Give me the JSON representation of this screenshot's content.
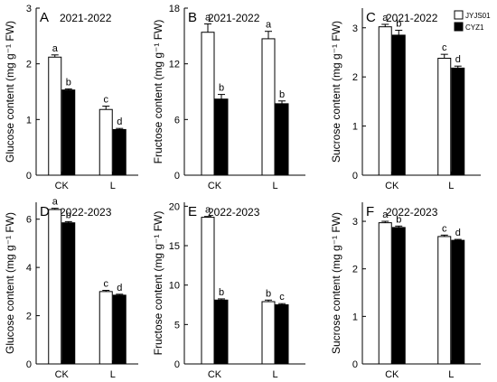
{
  "legend": {
    "items": [
      {
        "name": "JYJS01",
        "fill": "#ffffff"
      },
      {
        "name": "CYZ1",
        "fill": "#000000"
      }
    ]
  },
  "chart_data": [
    {
      "type": "bar",
      "panel_letter": "A",
      "period": "2021-2022",
      "ylabel": "Glucose content (mg g⁻¹ FW)",
      "ylim": [
        0,
        3
      ],
      "yticks": [
        0,
        1,
        2,
        3
      ],
      "categories": [
        "CK",
        "L"
      ],
      "series": [
        {
          "name": "JYJS01",
          "values": [
            2.12,
            1.18
          ],
          "errors": [
            0.04,
            0.06
          ],
          "letters": [
            "a",
            "c"
          ]
        },
        {
          "name": "CYZ1",
          "values": [
            1.53,
            0.82
          ],
          "errors": [
            0.02,
            0.02
          ],
          "letters": [
            "b",
            "d"
          ]
        }
      ]
    },
    {
      "type": "bar",
      "panel_letter": "B",
      "period": "2021-2022",
      "ylabel": "Fructose content (mg g⁻¹ FW)",
      "ylim": [
        0,
        18
      ],
      "yticks": [
        0,
        6,
        12,
        18
      ],
      "categories": [
        "CK",
        "L"
      ],
      "series": [
        {
          "name": "JYJS01",
          "values": [
            15.4,
            14.7
          ],
          "errors": [
            0.9,
            0.8
          ],
          "letters": [
            "a",
            "a"
          ]
        },
        {
          "name": "CYZ1",
          "values": [
            8.2,
            7.7
          ],
          "errors": [
            0.5,
            0.3
          ],
          "letters": [
            "b",
            "b"
          ]
        }
      ]
    },
    {
      "type": "bar",
      "panel_letter": "C",
      "period": "2021-2022",
      "ylabel": "Sucrose content (mg g⁻¹ FW)",
      "ylim": [
        0,
        3.4
      ],
      "yticks": [
        0,
        1,
        2,
        3
      ],
      "categories": [
        "CK",
        "L"
      ],
      "series": [
        {
          "name": "JYJS01",
          "values": [
            3.02,
            2.38
          ],
          "errors": [
            0.05,
            0.08
          ],
          "letters": [
            "a",
            "c"
          ]
        },
        {
          "name": "CYZ1",
          "values": [
            2.85,
            2.18
          ],
          "errors": [
            0.1,
            0.04
          ],
          "letters": [
            "b",
            "d"
          ]
        }
      ]
    },
    {
      "type": "bar",
      "panel_letter": "D",
      "period": "2022-2023",
      "ylabel": "Glucose content (mg g⁻¹ FW)",
      "ylim": [
        0,
        6.7
      ],
      "yticks": [
        0,
        2,
        4,
        6
      ],
      "categories": [
        "CK",
        "L"
      ],
      "series": [
        {
          "name": "JYJS01",
          "values": [
            6.4,
            3.0
          ],
          "errors": [
            0.05,
            0.05
          ],
          "letters": [
            "a",
            "c"
          ]
        },
        {
          "name": "CYZ1",
          "values": [
            5.85,
            2.85
          ],
          "errors": [
            0.05,
            0.04
          ],
          "letters": [
            "b",
            "d"
          ]
        }
      ]
    },
    {
      "type": "bar",
      "panel_letter": "E",
      "period": "2022-2023",
      "ylabel": "Fructose content (mg g⁻¹ FW)",
      "ylim": [
        0,
        20.5
      ],
      "yticks": [
        0,
        5,
        10,
        15,
        20
      ],
      "categories": [
        "CK",
        "L"
      ],
      "series": [
        {
          "name": "JYJS01",
          "values": [
            18.6,
            7.9
          ],
          "errors": [
            0.1,
            0.2
          ],
          "letters": [
            "a",
            "b"
          ]
        },
        {
          "name": "CYZ1",
          "values": [
            8.1,
            7.5
          ],
          "errors": [
            0.15,
            0.15
          ],
          "letters": [
            "b",
            "c"
          ]
        }
      ]
    },
    {
      "type": "bar",
      "panel_letter": "F",
      "period": "2022-2023",
      "ylabel": "Sucrose content (mg g⁻¹ FW)",
      "ylim": [
        0,
        3.4
      ],
      "yticks": [
        0,
        1,
        2,
        3
      ],
      "categories": [
        "CK",
        "L"
      ],
      "series": [
        {
          "name": "JYJS01",
          "values": [
            2.97,
            2.68
          ],
          "errors": [
            0.03,
            0.03
          ],
          "letters": [
            "a",
            "c"
          ]
        },
        {
          "name": "CYZ1",
          "values": [
            2.87,
            2.6
          ],
          "errors": [
            0.03,
            0.02
          ],
          "letters": [
            "b",
            "d"
          ]
        }
      ]
    }
  ]
}
